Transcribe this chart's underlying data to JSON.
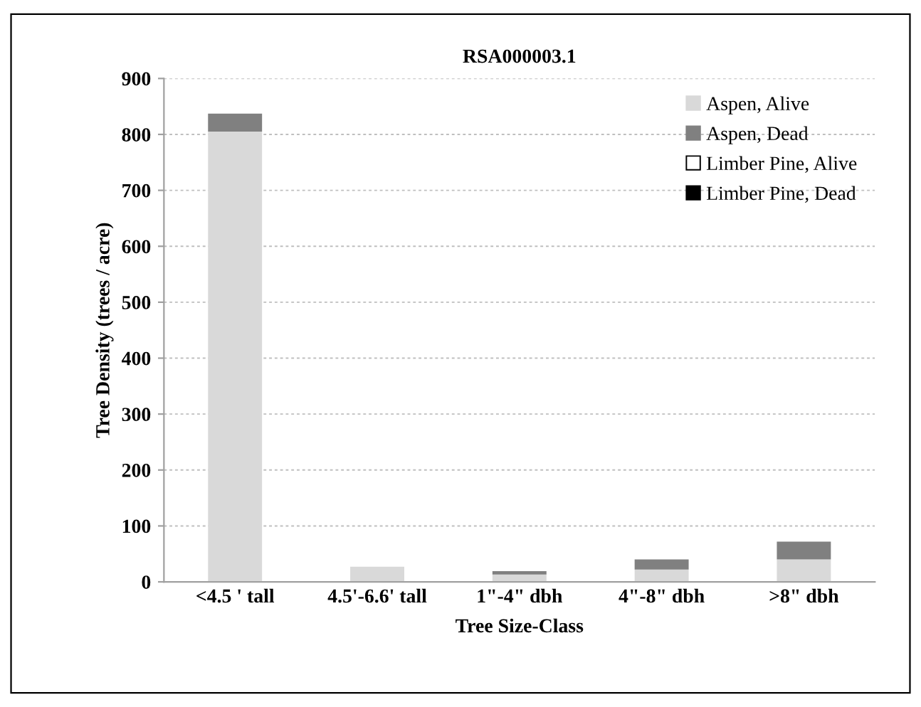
{
  "chart_data": {
    "type": "bar",
    "title": "RSA000003.1",
    "xlabel": "Tree Size-Class",
    "ylabel": "Tree Density (trees / acre)",
    "categories": [
      "<4.5 ' tall",
      "4.5'-6.6' tall",
      "1\"-4\" dbh",
      "4\"-8\" dbh",
      ">8\" dbh"
    ],
    "series": [
      {
        "name": "Aspen, Alive",
        "color": "#d9d9d9",
        "values": [
          805,
          27,
          13,
          22,
          40
        ]
      },
      {
        "name": "Aspen, Dead",
        "color": "#808080",
        "values": [
          32,
          0,
          6,
          18,
          32
        ]
      },
      {
        "name": "Limber Pine, Alive",
        "color": "#ffffff",
        "values": [
          0,
          0,
          0,
          0,
          0
        ]
      },
      {
        "name": "Limber Pine, Dead",
        "color": "#000000",
        "values": [
          0,
          0,
          0,
          0,
          0
        ]
      }
    ],
    "stacked": true,
    "ylim": [
      0,
      900
    ],
    "yticks": [
      0,
      100,
      200,
      300,
      400,
      500,
      600,
      700,
      800,
      900
    ],
    "grid": "y",
    "legend": "top right"
  }
}
